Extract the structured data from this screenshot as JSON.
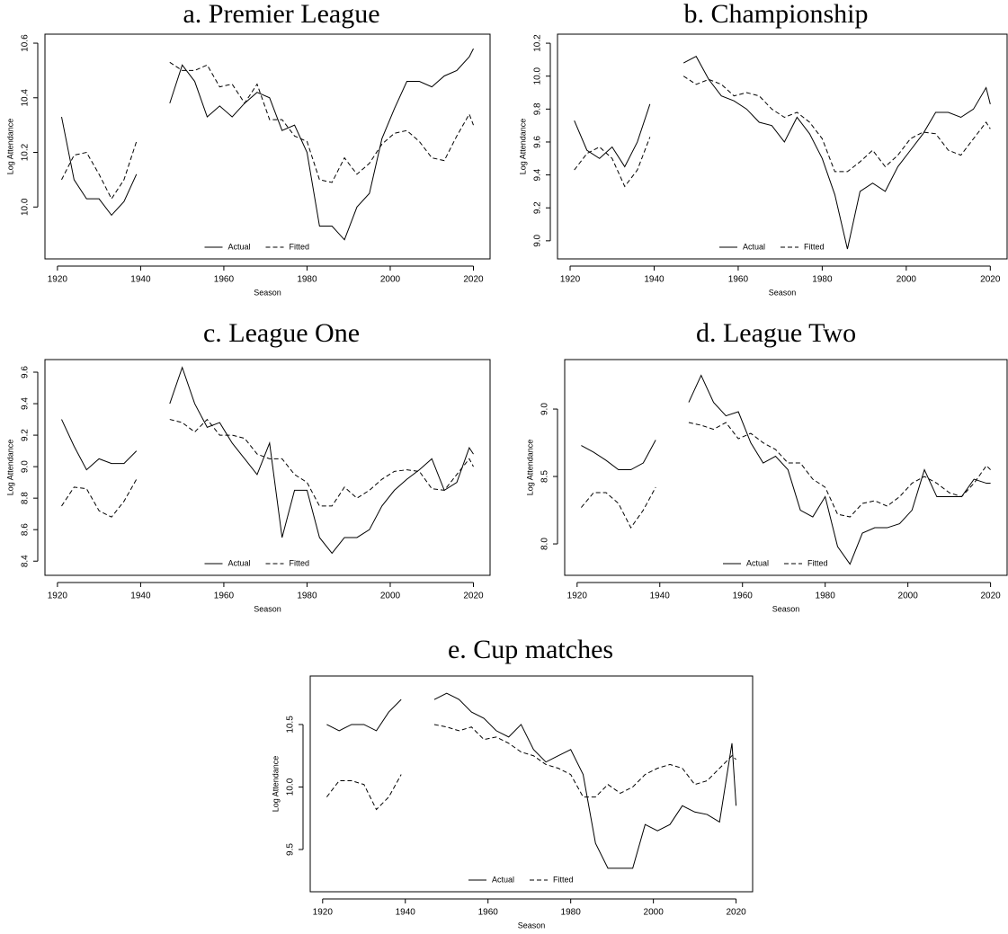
{
  "chart_data": [
    {
      "type": "line",
      "title": "a. Premier League",
      "x_label": "Season",
      "y_label": "Log Attendance",
      "legend": "bottom",
      "x": [
        1921,
        1924,
        1927,
        1930,
        1933,
        1936,
        1939,
        1943,
        1947,
        1950,
        1953,
        1956,
        1959,
        1962,
        1965,
        1968,
        1971,
        1974,
        1977,
        1980,
        1983,
        1986,
        1989,
        1992,
        1995,
        1998,
        2001,
        2004,
        2007,
        2010,
        2013,
        2016,
        2019,
        2020
      ],
      "xlim": [
        1917,
        2024
      ],
      "xticks": [
        1920,
        1940,
        1960,
        1980,
        2000,
        2020
      ],
      "ylim": [
        9.81,
        10.633
      ],
      "yticks": [
        {
          "value": 10,
          "label": "10.0"
        },
        10.2,
        10.4,
        10.6
      ],
      "series": [
        {
          "name": "Actual",
          "color": "#000000",
          "linestyle": "solid",
          "values": [
            10.33,
            10.1,
            10.03,
            10.03,
            9.97,
            10.02,
            10.12,
            null,
            10.38,
            10.52,
            10.46,
            10.33,
            10.37,
            10.33,
            10.38,
            10.42,
            10.4,
            10.28,
            10.3,
            10.2,
            9.93,
            9.93,
            9.88,
            10.0,
            10.05,
            10.25,
            10.36,
            10.46,
            10.46,
            10.44,
            10.48,
            10.5,
            10.55,
            10.58
          ]
        },
        {
          "name": "Fitted",
          "color": "#000000",
          "linestyle": "dashed",
          "values": [
            10.1,
            10.19,
            10.2,
            10.12,
            10.03,
            10.1,
            10.24,
            null,
            10.53,
            10.5,
            10.5,
            10.52,
            10.44,
            10.45,
            10.38,
            10.45,
            10.32,
            10.32,
            10.26,
            10.24,
            10.1,
            10.09,
            10.18,
            10.12,
            10.16,
            10.23,
            10.27,
            10.28,
            10.24,
            10.18,
            10.17,
            10.26,
            10.34,
            10.3
          ]
        }
      ]
    },
    {
      "type": "line",
      "title": "b. Championship",
      "x_label": "Season",
      "y_label": "Log Attendance",
      "legend": "bottom",
      "x": [
        1921,
        1924,
        1927,
        1930,
        1933,
        1936,
        1939,
        1943,
        1947,
        1950,
        1953,
        1956,
        1959,
        1962,
        1965,
        1968,
        1971,
        1974,
        1977,
        1980,
        1983,
        1986,
        1989,
        1992,
        1995,
        1998,
        2001,
        2004,
        2007,
        2010,
        2013,
        2016,
        2019,
        2020
      ],
      "xlim": [
        1917,
        2024
      ],
      "xticks": [
        1920,
        1940,
        1960,
        1980,
        2000,
        2020
      ],
      "ylim": [
        8.89,
        10.255
      ],
      "yticks": [
        {
          "value": 9,
          "label": "9.0"
        },
        9.2,
        9.4,
        9.6,
        9.8,
        {
          "value": 10,
          "label": "10.0"
        },
        10.2
      ],
      "series": [
        {
          "name": "Actual",
          "color": "#000000",
          "linestyle": "solid",
          "values": [
            9.73,
            9.55,
            9.5,
            9.57,
            9.45,
            9.6,
            9.83,
            null,
            10.08,
            10.12,
            9.98,
            9.88,
            9.85,
            9.8,
            9.72,
            9.7,
            9.6,
            9.75,
            9.65,
            9.5,
            9.28,
            8.95,
            9.3,
            9.35,
            9.3,
            9.45,
            9.55,
            9.65,
            9.78,
            9.78,
            9.75,
            9.8,
            9.93,
            9.83
          ]
        },
        {
          "name": "Fitted",
          "color": "#000000",
          "linestyle": "dashed",
          "values": [
            9.43,
            9.53,
            9.57,
            9.5,
            9.33,
            9.43,
            9.63,
            null,
            10.0,
            9.95,
            9.98,
            9.95,
            9.88,
            9.9,
            9.88,
            9.8,
            9.75,
            9.78,
            9.72,
            9.62,
            9.42,
            9.42,
            9.48,
            9.55,
            9.45,
            9.52,
            9.62,
            9.66,
            9.65,
            9.55,
            9.52,
            9.62,
            9.72,
            9.68
          ]
        }
      ]
    },
    {
      "type": "line",
      "title": "c. League One",
      "x_label": "Season",
      "y_label": "Log Attendance",
      "legend": "bottom",
      "x": [
        1921,
        1924,
        1927,
        1930,
        1933,
        1936,
        1939,
        1943,
        1947,
        1950,
        1953,
        1956,
        1959,
        1962,
        1965,
        1968,
        1971,
        1974,
        1977,
        1980,
        1983,
        1986,
        1989,
        1992,
        1995,
        1998,
        2001,
        2004,
        2007,
        2010,
        2013,
        2016,
        2019,
        2020
      ],
      "xlim": [
        1917,
        2024
      ],
      "xticks": [
        1920,
        1940,
        1960,
        1980,
        2000,
        2020
      ],
      "ylim": [
        8.31,
        9.68
      ],
      "yticks": [
        8.4,
        8.6,
        8.8,
        {
          "value": 9,
          "label": "9.0"
        },
        9.2,
        9.4,
        9.6
      ],
      "series": [
        {
          "name": "Actual",
          "color": "#000000",
          "linestyle": "solid",
          "values": [
            9.3,
            9.13,
            8.98,
            9.05,
            9.02,
            9.02,
            9.1,
            null,
            9.4,
            9.63,
            9.4,
            9.25,
            9.28,
            9.15,
            9.05,
            8.95,
            9.15,
            8.55,
            8.85,
            8.85,
            8.55,
            8.45,
            8.55,
            8.55,
            8.6,
            8.75,
            8.85,
            8.92,
            8.98,
            9.05,
            8.85,
            8.9,
            9.12,
            9.08
          ]
        },
        {
          "name": "Fitted",
          "color": "#000000",
          "linestyle": "dashed",
          "values": [
            8.75,
            8.87,
            8.86,
            8.72,
            8.68,
            8.78,
            8.92,
            null,
            9.3,
            9.28,
            9.22,
            9.3,
            9.2,
            9.2,
            9.18,
            9.08,
            9.05,
            9.05,
            8.95,
            8.9,
            8.75,
            8.75,
            8.87,
            8.8,
            8.85,
            8.92,
            8.97,
            8.98,
            8.97,
            8.86,
            8.85,
            8.95,
            9.05,
            9.0
          ]
        }
      ]
    },
    {
      "type": "line",
      "title": "d. League Two",
      "x_label": "Season",
      "y_label": "Log Attendance",
      "legend": "bottom",
      "x": [
        1921,
        1924,
        1927,
        1930,
        1933,
        1936,
        1939,
        1943,
        1947,
        1950,
        1953,
        1956,
        1959,
        1962,
        1965,
        1968,
        1971,
        1974,
        1977,
        1980,
        1983,
        1986,
        1989,
        1992,
        1995,
        1998,
        2001,
        2004,
        2007,
        2010,
        2013,
        2016,
        2019,
        2020
      ],
      "xlim": [
        1917,
        2024
      ],
      "xticks": [
        1920,
        1940,
        1960,
        1980,
        2000,
        2020
      ],
      "ylim": [
        7.767,
        9.367
      ],
      "yticks": [
        {
          "value": 8,
          "label": "8.0"
        },
        8.5,
        {
          "value": 9,
          "label": "9.0"
        }
      ],
      "series": [
        {
          "name": "Actual",
          "color": "#000000",
          "linestyle": "solid",
          "values": [
            8.73,
            8.68,
            8.62,
            8.55,
            8.55,
            8.6,
            8.77,
            null,
            9.05,
            9.25,
            9.05,
            8.95,
            8.98,
            8.75,
            8.6,
            8.65,
            8.55,
            8.25,
            8.2,
            8.35,
            7.98,
            7.85,
            8.08,
            8.12,
            8.12,
            8.15,
            8.25,
            8.55,
            8.35,
            8.35,
            8.35,
            8.48,
            8.45,
            8.45
          ]
        },
        {
          "name": "Fitted",
          "color": "#000000",
          "linestyle": "dashed",
          "values": [
            8.27,
            8.38,
            8.38,
            8.3,
            8.12,
            8.25,
            8.42,
            null,
            8.9,
            8.88,
            8.85,
            8.9,
            8.78,
            8.82,
            8.75,
            8.7,
            8.6,
            8.6,
            8.48,
            8.42,
            8.22,
            8.2,
            8.3,
            8.32,
            8.28,
            8.35,
            8.45,
            8.5,
            8.45,
            8.38,
            8.35,
            8.45,
            8.58,
            8.55
          ]
        }
      ]
    },
    {
      "type": "line",
      "title": "e. Cup matches",
      "x_label": "Season",
      "y_label": "Log Attendance",
      "legend": "bottom",
      "x": [
        1921,
        1924,
        1927,
        1930,
        1933,
        1936,
        1939,
        1943,
        1947,
        1950,
        1953,
        1956,
        1959,
        1962,
        1965,
        1968,
        1971,
        1974,
        1977,
        1980,
        1983,
        1986,
        1989,
        1992,
        1995,
        1998,
        2001,
        2004,
        2007,
        2010,
        2013,
        2016,
        2019,
        2020
      ],
      "xlim": [
        1917,
        2024
      ],
      "xticks": [
        1920,
        1940,
        1960,
        1980,
        2000,
        2020
      ],
      "ylim": [
        9.162,
        10.888
      ],
      "yticks": [
        9.5,
        {
          "value": 10,
          "label": "10.0"
        },
        10.5
      ],
      "series": [
        {
          "name": "Actual",
          "color": "#000000",
          "linestyle": "solid",
          "values": [
            10.5,
            10.45,
            10.5,
            10.5,
            10.45,
            10.6,
            10.7,
            null,
            10.7,
            10.75,
            10.7,
            10.6,
            10.55,
            10.45,
            10.4,
            10.5,
            10.3,
            10.2,
            10.25,
            10.3,
            10.1,
            9.55,
            9.35,
            9.35,
            9.35,
            9.7,
            9.65,
            9.7,
            9.85,
            9.8,
            9.78,
            9.72,
            10.35,
            9.85
          ]
        },
        {
          "name": "Fitted",
          "color": "#000000",
          "linestyle": "dashed",
          "values": [
            9.92,
            10.05,
            10.05,
            10.02,
            9.82,
            9.92,
            10.1,
            null,
            10.5,
            10.48,
            10.45,
            10.48,
            10.38,
            10.4,
            10.35,
            10.28,
            10.25,
            10.18,
            10.15,
            10.1,
            9.92,
            9.92,
            10.02,
            9.95,
            10.0,
            10.1,
            10.15,
            10.18,
            10.15,
            10.02,
            10.05,
            10.15,
            10.25,
            10.22
          ]
        }
      ]
    }
  ]
}
